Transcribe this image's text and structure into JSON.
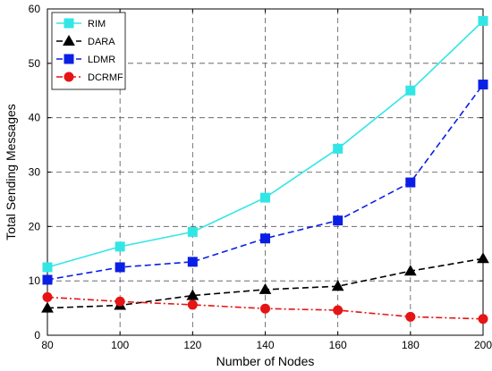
{
  "chart_data": {
    "type": "line",
    "title": "",
    "xlabel": "Number of Nodes",
    "ylabel": "Total Sending Messages",
    "x": [
      80,
      100,
      120,
      140,
      160,
      180,
      200
    ],
    "xlim": [
      80,
      200
    ],
    "ylim": [
      0,
      60
    ],
    "xticks": [
      80,
      100,
      120,
      140,
      160,
      180,
      200
    ],
    "yticks": [
      0,
      10,
      20,
      30,
      40,
      50,
      60
    ],
    "grid": true,
    "legend_position": "top-left",
    "series": [
      {
        "name": "RIM",
        "values": [
          12.5,
          16.3,
          19.0,
          25.3,
          34.3,
          45.0,
          57.8
        ],
        "color": "#33e6e6",
        "marker": "square",
        "dash": "solid"
      },
      {
        "name": "DARA",
        "values": [
          5.0,
          5.5,
          7.3,
          8.4,
          9.0,
          11.8,
          14.1
        ],
        "color": "#000000",
        "marker": "triangle",
        "dash": "dashed"
      },
      {
        "name": "LDMR",
        "values": [
          10.2,
          12.5,
          13.5,
          17.8,
          21.1,
          28.1,
          46.1
        ],
        "color": "#0a1fe6",
        "marker": "square",
        "dash": "dashed"
      },
      {
        "name": "DCRMF",
        "values": [
          7.0,
          6.2,
          5.6,
          4.9,
          4.6,
          3.4,
          3.0
        ],
        "color": "#e61414",
        "marker": "circle",
        "dash": "dashdot"
      }
    ]
  }
}
